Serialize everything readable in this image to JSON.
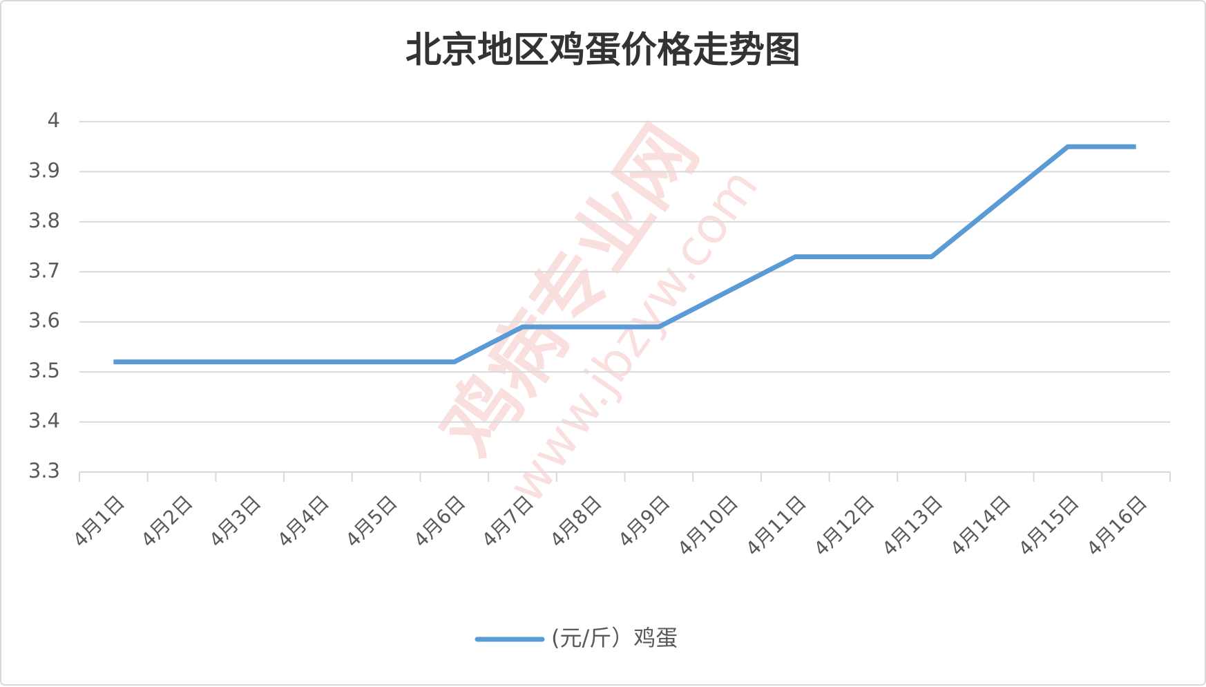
{
  "chart_data": {
    "type": "line",
    "title": "北京地区鸡蛋价格走势图",
    "categories": [
      "4月1日",
      "4月2日",
      "4月3日",
      "4月4日",
      "4月5日",
      "4月6日",
      "4月7日",
      "4月8日",
      "4月9日",
      "4月10日",
      "4月11日",
      "4月12日",
      "4月13日",
      "4月14日",
      "4月15日",
      "4月16日"
    ],
    "series": [
      {
        "name": "(元/斤）鸡蛋",
        "color": "#5b9bd5",
        "values": [
          3.52,
          3.52,
          3.52,
          3.52,
          3.52,
          3.52,
          3.59,
          3.59,
          3.59,
          3.66,
          3.73,
          3.73,
          3.73,
          3.84,
          3.95,
          3.95
        ]
      }
    ],
    "ylim": [
      3.3,
      4
    ],
    "yticks": [
      3.3,
      3.4,
      3.5,
      3.6,
      3.7,
      3.8,
      3.9,
      4
    ],
    "grid": true,
    "legend": "bottom",
    "watermark": [
      "鸡病专业网",
      "www.jbzyw.com"
    ]
  }
}
